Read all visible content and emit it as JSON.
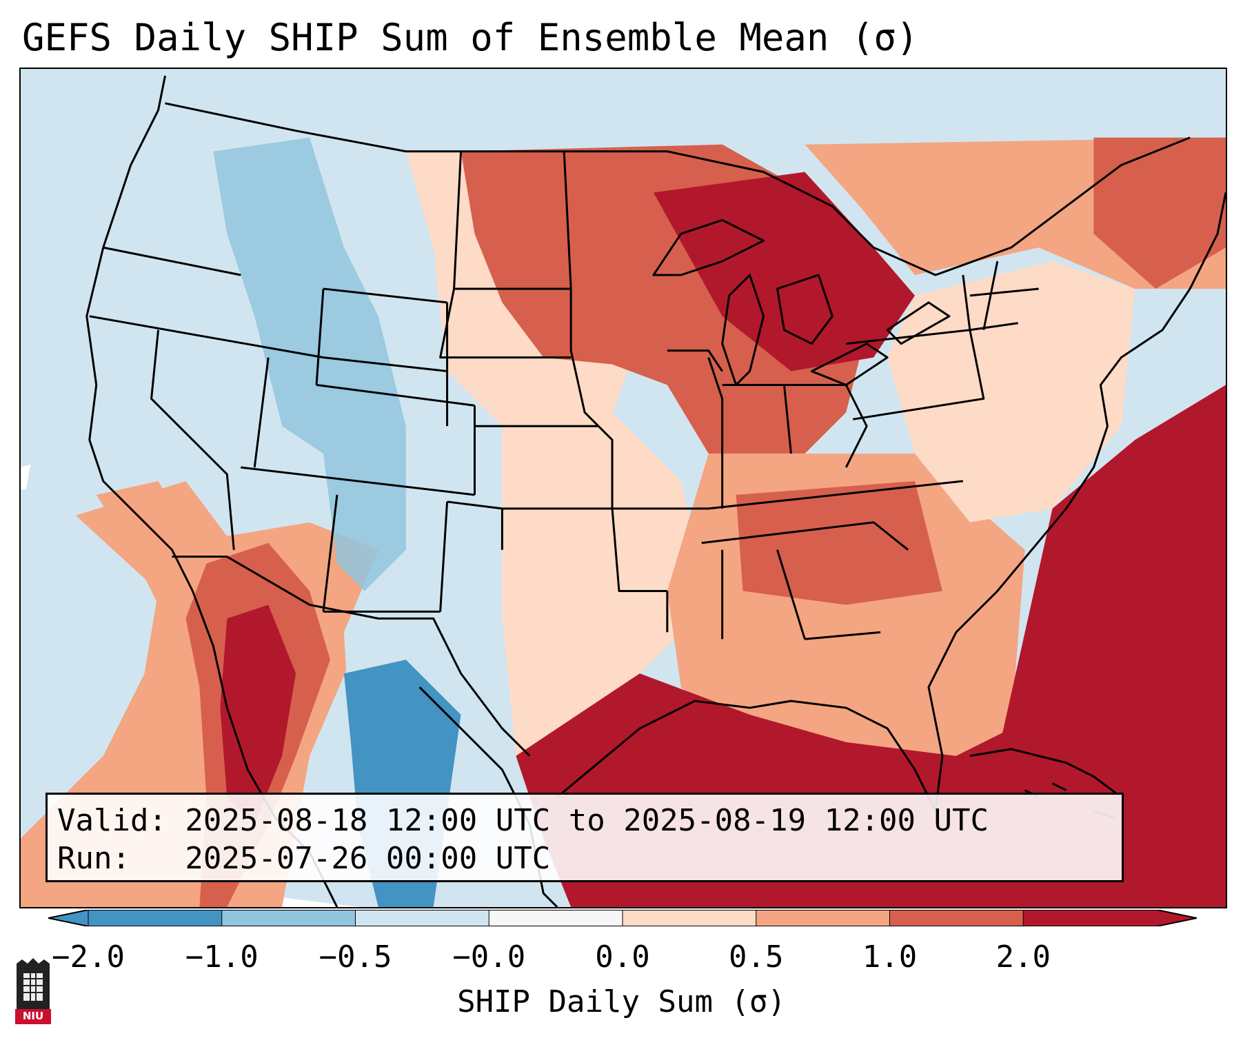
{
  "title": "GEFS Daily SHIP Sum of Ensemble Mean (σ)",
  "info": {
    "valid": "Valid: 2025-08-18 12:00 UTC to 2025-08-19 12:00 UTC",
    "run": "Run:   2025-07-26 00:00 UTC"
  },
  "colorbar": {
    "label": "SHIP Daily Sum (σ)",
    "ticks": [
      "−2.0",
      "−1.0",
      "−0.5",
      "−0.0",
      "0.0",
      "0.5",
      "1.0",
      "2.0"
    ],
    "colors": [
      "#4393c3",
      "#92c5de",
      "#d1e5f0",
      "#f7f7f7",
      "#fddbc7",
      "#f4a582",
      "#d6604d",
      "#b2182b"
    ],
    "extend": "both"
  },
  "logo_text": "NIU",
  "map_colors": {
    "ocean_pacific": "#d1e5f0",
    "atlantic_gulf": "#b2182b",
    "borders": "#000000"
  }
}
